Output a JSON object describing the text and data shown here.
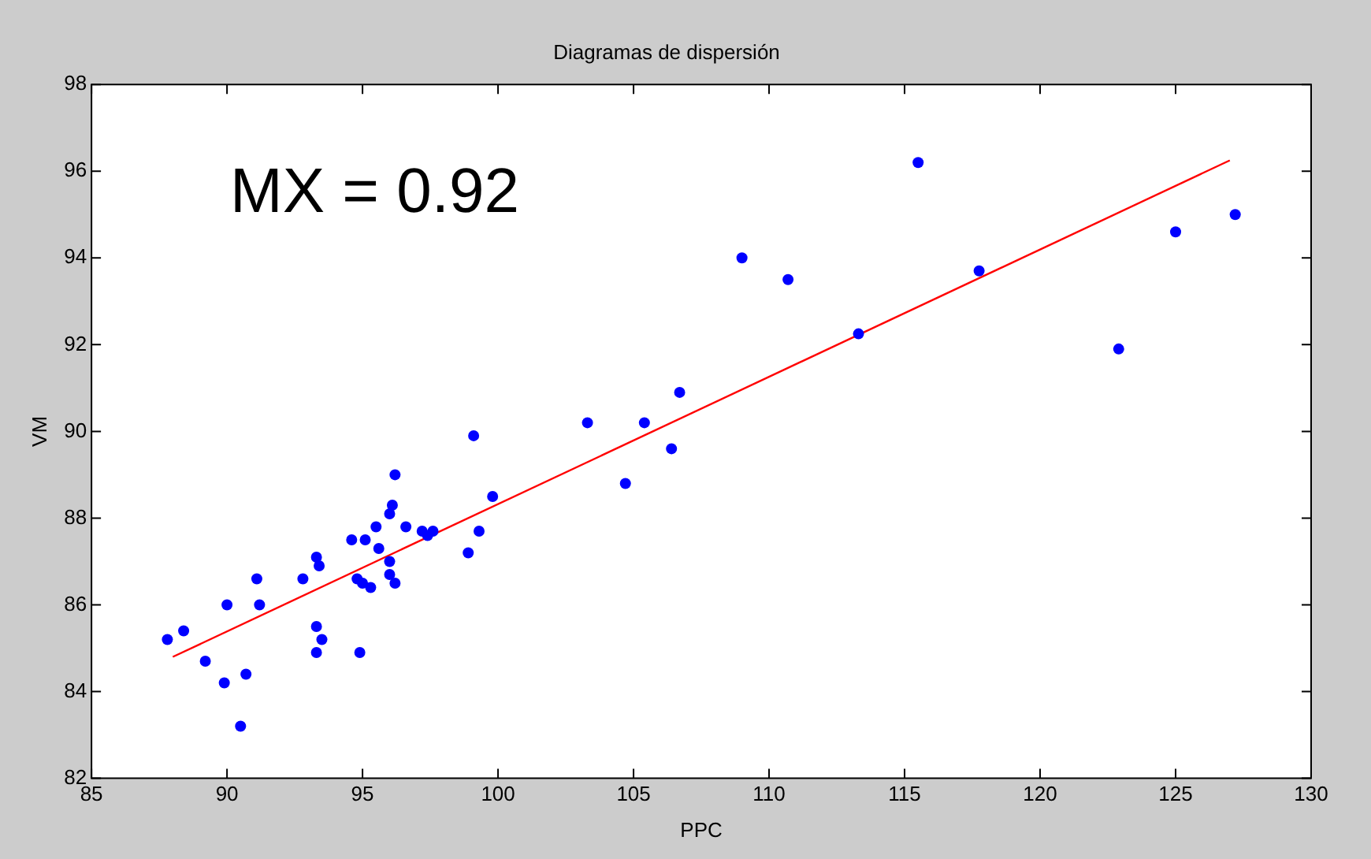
{
  "chart_data": {
    "type": "scatter",
    "title": "Diagramas de dispersión",
    "xlabel": "PPC",
    "ylabel": "VM",
    "annotations": [
      "MX = 0.92"
    ],
    "xlim": [
      85,
      130
    ],
    "xticks": [
      85,
      90,
      95,
      100,
      105,
      110,
      115,
      120,
      125,
      130
    ],
    "ylim": [
      82,
      98
    ],
    "yticks": [
      82,
      84,
      86,
      88,
      90,
      92,
      94,
      96,
      98
    ],
    "grid": false,
    "legend": false,
    "marker": "circle",
    "series": [
      {
        "color": "#0000ff",
        "x": [
          87.8,
          88.4,
          89.2,
          89.9,
          90.0,
          90.7,
          90.5,
          91.1,
          91.2,
          92.8,
          93.3,
          93.4,
          93.3,
          93.5,
          93.3,
          94.9,
          94.6,
          95.1,
          94.8,
          95.0,
          95.3,
          95.5,
          95.6,
          96.0,
          96.0,
          96.1,
          96.2,
          96.0,
          96.2,
          96.6,
          97.2,
          97.6,
          97.4,
          98.9,
          99.3,
          99.8,
          99.1,
          103.3,
          104.7,
          105.4,
          106.4,
          106.7,
          109.0,
          110.7,
          113.3,
          115.5,
          117.75,
          122.9,
          125.0,
          127.2
        ],
        "values": [
          85.2,
          85.4,
          84.7,
          84.2,
          86.0,
          84.4,
          83.2,
          86.6,
          86.0,
          86.6,
          87.1,
          86.9,
          85.5,
          85.2,
          84.9,
          84.9,
          87.5,
          87.5,
          86.6,
          86.5,
          86.4,
          87.8,
          87.3,
          87.0,
          88.1,
          88.3,
          89.0,
          86.7,
          86.5,
          87.8,
          87.7,
          87.7,
          87.6,
          87.2,
          87.7,
          88.5,
          89.9,
          90.2,
          88.8,
          90.2,
          89.6,
          90.9,
          94.0,
          93.5,
          92.25,
          96.2,
          93.7,
          91.9,
          94.6,
          95.0
        ]
      },
      {
        "type": "line",
        "color": "#ff0000",
        "marker": "none",
        "x": [
          88,
          127
        ],
        "values": [
          84.8,
          96.25
        ]
      }
    ]
  }
}
